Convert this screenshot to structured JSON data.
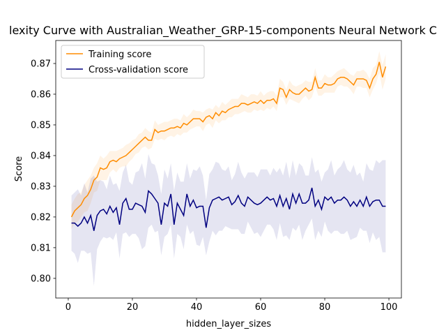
{
  "chart_data": {
    "type": "line",
    "title": "lexity Curve with Australian_Weather_GRP-15-components Neural Network C",
    "x_label": "hidden_layer_sizes",
    "y_label": "Score",
    "x": [
      1,
      2,
      3,
      4,
      5,
      6,
      7,
      8,
      9,
      10,
      11,
      12,
      13,
      14,
      15,
      16,
      17,
      18,
      19,
      20,
      21,
      22,
      23,
      24,
      25,
      26,
      27,
      28,
      29,
      30,
      31,
      32,
      33,
      34,
      35,
      36,
      37,
      38,
      39,
      40,
      41,
      42,
      43,
      44,
      45,
      46,
      47,
      48,
      49,
      50,
      51,
      52,
      53,
      54,
      55,
      56,
      57,
      58,
      59,
      60,
      61,
      62,
      63,
      64,
      65,
      66,
      67,
      68,
      69,
      70,
      71,
      72,
      73,
      74,
      75,
      76,
      77,
      78,
      79,
      80,
      81,
      82,
      83,
      84,
      85,
      86,
      87,
      88,
      89,
      90,
      91,
      92,
      93,
      94,
      95,
      96,
      97,
      98,
      99
    ],
    "series": [
      {
        "name": "Training score",
        "color": "#ff8c00",
        "values": [
          0.82,
          0.822,
          0.823,
          0.824,
          0.826,
          0.827,
          0.829,
          0.832,
          0.833,
          0.836,
          0.8355,
          0.836,
          0.838,
          0.8385,
          0.838,
          0.839,
          0.8395,
          0.84,
          0.841,
          0.842,
          0.843,
          0.844,
          0.845,
          0.846,
          0.845,
          0.845,
          0.8485,
          0.8475,
          0.848,
          0.848,
          0.8485,
          0.849,
          0.849,
          0.8495,
          0.849,
          0.8505,
          0.85,
          0.851,
          0.852,
          0.852,
          0.852,
          0.851,
          0.8525,
          0.853,
          0.852,
          0.854,
          0.853,
          0.8545,
          0.854,
          0.855,
          0.8555,
          0.856,
          0.856,
          0.857,
          0.857,
          0.8565,
          0.857,
          0.8575,
          0.857,
          0.858,
          0.857,
          0.858,
          0.858,
          0.8585,
          0.857,
          0.862,
          0.8615,
          0.859,
          0.8615,
          0.8605,
          0.86,
          0.86,
          0.861,
          0.862,
          0.861,
          0.8615,
          0.8655,
          0.862,
          0.862,
          0.8635,
          0.863,
          0.863,
          0.8635,
          0.865,
          0.8655,
          0.8655,
          0.865,
          0.864,
          0.863,
          0.865,
          0.865,
          0.865,
          0.8645,
          0.862,
          0.865,
          0.8665,
          0.8705,
          0.8655,
          0.869
        ],
        "std": [
          0.004,
          0.004,
          0.0045,
          0.004,
          0.0045,
          0.005,
          0.0045,
          0.004,
          0.0045,
          0.004,
          0.0035,
          0.004,
          0.0035,
          0.003,
          0.0035,
          0.003,
          0.003,
          0.0035,
          0.003,
          0.003,
          0.0025,
          0.003,
          0.0025,
          0.003,
          0.003,
          0.0025,
          0.003,
          0.0025,
          0.0025,
          0.003,
          0.0025,
          0.0025,
          0.003,
          0.0025,
          0.0025,
          0.003,
          0.0025,
          0.0025,
          0.003,
          0.0025,
          0.0025,
          0.003,
          0.0025,
          0.0025,
          0.003,
          0.0025,
          0.0025,
          0.003,
          0.0025,
          0.0025,
          0.003,
          0.0025,
          0.0025,
          0.003,
          0.0025,
          0.0025,
          0.003,
          0.0025,
          0.0025,
          0.003,
          0.0025,
          0.0025,
          0.003,
          0.0025,
          0.0025,
          0.003,
          0.0025,
          0.0025,
          0.003,
          0.0025,
          0.0025,
          0.003,
          0.0025,
          0.0025,
          0.003,
          0.0025,
          0.003,
          0.0025,
          0.0025,
          0.003,
          0.0025,
          0.0025,
          0.003,
          0.0025,
          0.0025,
          0.003,
          0.0025,
          0.0025,
          0.003,
          0.0025,
          0.0025,
          0.003,
          0.0025,
          0.003,
          0.0035,
          0.003,
          0.0035,
          0.004,
          0.004
        ]
      },
      {
        "name": "Cross-validation score",
        "color": "#000080",
        "values": [
          0.818,
          0.818,
          0.817,
          0.818,
          0.82,
          0.818,
          0.8205,
          0.8155,
          0.8205,
          0.822,
          0.8225,
          0.821,
          0.8235,
          0.8215,
          0.823,
          0.8175,
          0.8245,
          0.826,
          0.8225,
          0.8225,
          0.8245,
          0.824,
          0.8235,
          0.8215,
          0.8285,
          0.8275,
          0.826,
          0.8245,
          0.8175,
          0.8245,
          0.8235,
          0.8275,
          0.8175,
          0.8245,
          0.8225,
          0.8205,
          0.8275,
          0.8235,
          0.8255,
          0.823,
          0.8235,
          0.8235,
          0.8165,
          0.823,
          0.8255,
          0.826,
          0.8265,
          0.8255,
          0.826,
          0.8265,
          0.824,
          0.825,
          0.827,
          0.8245,
          0.8235,
          0.8265,
          0.8255,
          0.8245,
          0.824,
          0.8245,
          0.8255,
          0.8265,
          0.8255,
          0.826,
          0.8235,
          0.827,
          0.8235,
          0.826,
          0.8225,
          0.8275,
          0.8245,
          0.8275,
          0.8245,
          0.8245,
          0.8255,
          0.8295,
          0.8235,
          0.8255,
          0.8225,
          0.8265,
          0.8255,
          0.8265,
          0.8245,
          0.8255,
          0.8255,
          0.8265,
          0.8255,
          0.8235,
          0.825,
          0.8235,
          0.8255,
          0.8235,
          0.8265,
          0.8235,
          0.825,
          0.8255,
          0.8255,
          0.8235,
          0.8235
        ],
        "std": [
          0.009,
          0.01,
          0.012,
          0.009,
          0.011,
          0.01,
          0.012,
          0.018,
          0.011,
          0.01,
          0.009,
          0.008,
          0.01,
          0.009,
          0.008,
          0.011,
          0.01,
          0.011,
          0.009,
          0.008,
          0.01,
          0.011,
          0.014,
          0.011,
          0.012,
          0.01,
          0.011,
          0.009,
          0.01,
          0.011,
          0.009,
          0.01,
          0.011,
          0.01,
          0.009,
          0.011,
          0.01,
          0.009,
          0.01,
          0.012,
          0.013,
          0.01,
          0.009,
          0.011,
          0.01,
          0.012,
          0.011,
          0.01,
          0.009,
          0.01,
          0.008,
          0.009,
          0.011,
          0.01,
          0.009,
          0.008,
          0.009,
          0.01,
          0.009,
          0.011,
          0.01,
          0.009,
          0.008,
          0.01,
          0.011,
          0.009,
          0.01,
          0.012,
          0.01,
          0.011,
          0.009,
          0.01,
          0.012,
          0.009,
          0.008,
          0.01,
          0.011,
          0.01,
          0.009,
          0.008,
          0.01,
          0.012,
          0.009,
          0.01,
          0.011,
          0.012,
          0.01,
          0.011,
          0.012,
          0.01,
          0.009,
          0.008,
          0.011,
          0.012,
          0.01,
          0.013,
          0.012,
          0.015,
          0.015
        ]
      }
    ],
    "xlim": [
      -3.9,
      103.9
    ],
    "ylim": [
      0.7936,
      0.8775
    ],
    "xticks": [
      0,
      20,
      40,
      60,
      80,
      100
    ],
    "yticks": [
      {
        "value": 0.8,
        "label": "0.80"
      },
      0.81,
      0.82,
      0.83,
      0.84,
      0.85,
      0.86,
      0.87
    ],
    "legend": "upper left"
  }
}
